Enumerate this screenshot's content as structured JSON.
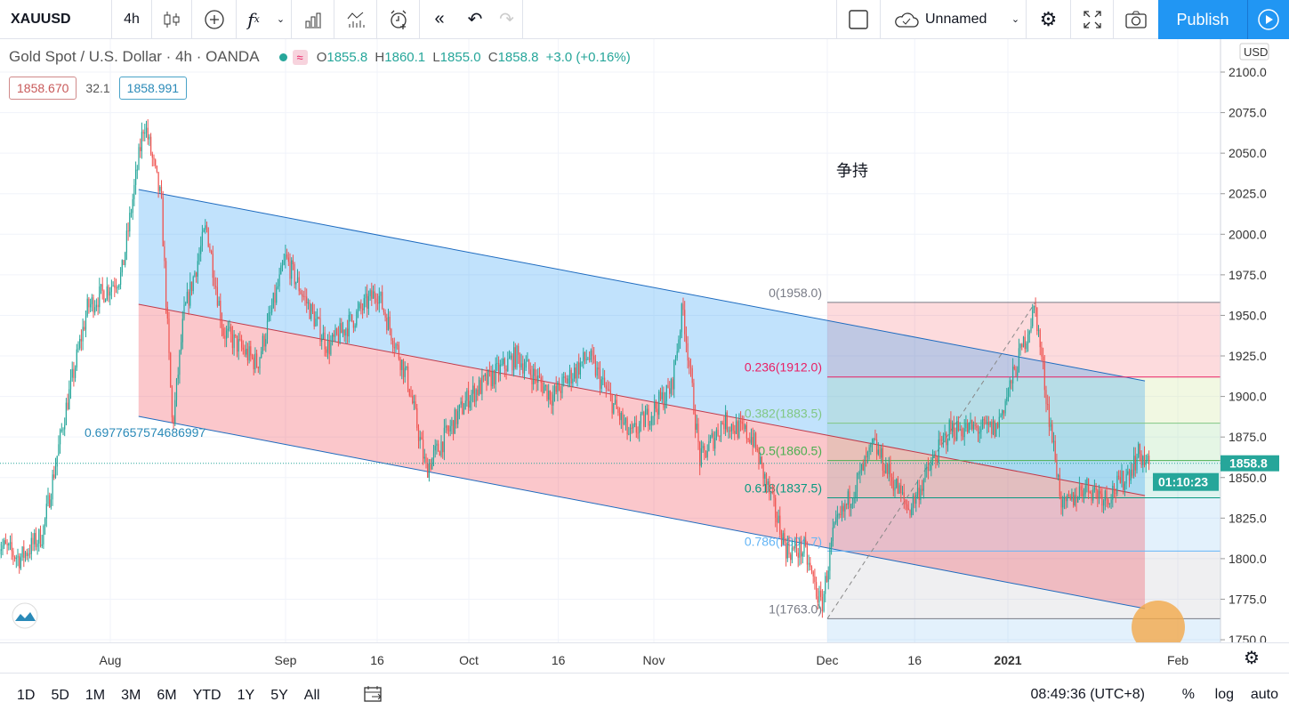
{
  "toolbar": {
    "symbol": "XAUUSD",
    "interval": "4h",
    "layout_name": "Unnamed",
    "publish_label": "Publish",
    "icons": [
      "candles-icon",
      "add-compare-icon",
      "indicators-icon",
      "chevron-down-icon",
      "templates-icon",
      "financials-icon",
      "alert-icon",
      "replay-icon",
      "undo-icon",
      "redo-icon",
      "rectangle-icon",
      "cloud-icon",
      "gear-icon",
      "fullscreen-icon",
      "camera-icon",
      "play-icon"
    ]
  },
  "legend": {
    "title": "Gold Spot / U.S. Dollar · 4h · OANDA",
    "o_label": "O",
    "o": "1855.8",
    "h_label": "H",
    "h": "1860.1",
    "l_label": "L",
    "l": "1855.0",
    "c_label": "C",
    "c": "1858.8",
    "change": "+3.0 (+0.16%)",
    "wave_icon": "≈",
    "indicator_values": [
      "1858.670",
      "32.1",
      "1858.991"
    ]
  },
  "annotations": {
    "note": "争持",
    "ratio_label": "0.6977657574686997"
  },
  "colors": {
    "up": "#26a69a",
    "down": "#ef5350",
    "accent": "#2196f3",
    "channel_upper": "#2196f3",
    "channel_lower": "#ef5350"
  },
  "price_axis": {
    "currency": "USD",
    "ticks": [
      "2100.0",
      "2075.0",
      "2050.0",
      "2025.0",
      "2000.0",
      "1975.0",
      "1950.0",
      "1925.0",
      "1900.0",
      "1875.0",
      "1850.0",
      "1825.0",
      "1800.0",
      "1775.0",
      "1750.0"
    ],
    "last_price": "1858.8",
    "countdown": "01:10:23"
  },
  "time_axis": {
    "labels": [
      {
        "t": "Aug",
        "d": "2020-08-01"
      },
      {
        "t": "Sep",
        "d": "2020-09-01"
      },
      {
        "t": "16",
        "d": "2020-09-16"
      },
      {
        "t": "Oct",
        "d": "2020-10-01"
      },
      {
        "t": "16",
        "d": "2020-10-16"
      },
      {
        "t": "Nov",
        "d": "2020-11-01"
      },
      {
        "t": "Dec",
        "d": "2020-12-01"
      },
      {
        "t": "16",
        "d": "2020-12-16"
      },
      {
        "t": "2021",
        "d": "2021-01-01"
      },
      {
        "t": "Feb",
        "d": "2021-02-01"
      }
    ]
  },
  "bottom": {
    "ranges": [
      "1D",
      "5D",
      "1M",
      "3M",
      "6M",
      "YTD",
      "1Y",
      "5Y",
      "All"
    ],
    "time": "08:49:36 (UTC+8)",
    "percent": "%",
    "log": "log",
    "auto": "auto"
  },
  "chart_data": {
    "type": "candlestick",
    "ylim": [
      1745,
      2110
    ],
    "price_path": [
      [
        "2020-07-12",
        1810
      ],
      [
        "2020-07-16",
        1800
      ],
      [
        "2020-07-20",
        1815
      ],
      [
        "2020-07-24",
        1890
      ],
      [
        "2020-07-28",
        1955
      ],
      [
        "2020-08-03",
        1975
      ],
      [
        "2020-08-07",
        2070
      ],
      [
        "2020-08-10",
        2020
      ],
      [
        "2020-08-12",
        1880
      ],
      [
        "2020-08-14",
        1950
      ],
      [
        "2020-08-18",
        2005
      ],
      [
        "2020-08-21",
        1940
      ],
      [
        "2020-08-27",
        1920
      ],
      [
        "2020-09-01",
        1985
      ],
      [
        "2020-09-08",
        1930
      ],
      [
        "2020-09-16",
        1965
      ],
      [
        "2020-09-21",
        1910
      ],
      [
        "2020-09-24",
        1855
      ],
      [
        "2020-10-01",
        1900
      ],
      [
        "2020-10-09",
        1925
      ],
      [
        "2020-10-15",
        1900
      ],
      [
        "2020-10-21",
        1925
      ],
      [
        "2020-10-28",
        1875
      ],
      [
        "2020-11-04",
        1905
      ],
      [
        "2020-11-06",
        1955
      ],
      [
        "2020-11-09",
        1860
      ],
      [
        "2020-11-13",
        1885
      ],
      [
        "2020-11-18",
        1875
      ],
      [
        "2020-11-24",
        1805
      ],
      [
        "2020-11-27",
        1805
      ],
      [
        "2020-11-30",
        1770
      ],
      [
        "2020-12-02",
        1815
      ],
      [
        "2020-12-09",
        1870
      ],
      [
        "2020-12-15",
        1830
      ],
      [
        "2020-12-22",
        1880
      ],
      [
        "2020-12-30",
        1880
      ],
      [
        "2021-01-06",
        1955
      ],
      [
        "2021-01-08",
        1900
      ],
      [
        "2021-01-11",
        1830
      ],
      [
        "2021-01-15",
        1845
      ],
      [
        "2021-01-19",
        1838
      ],
      [
        "2021-01-22",
        1848
      ],
      [
        "2021-01-25",
        1865
      ],
      [
        "2021-01-27",
        1855
      ]
    ],
    "channel": {
      "start": "2020-08-06",
      "end": "2021-01-26",
      "upper": [
        2027.6,
        1909.6
      ],
      "middle": [
        1956.8,
        1838.9
      ],
      "lower": [
        1887.7,
        1769.2
      ]
    },
    "fib": {
      "start": "2020-12-01",
      "levels": [
        {
          "r": "0",
          "p": 1958.0,
          "c": "#787b86"
        },
        {
          "r": "0.236",
          "p": 1912.0,
          "c": "#e91e63"
        },
        {
          "r": "0.382",
          "p": 1883.5,
          "c": "#81c784"
        },
        {
          "r": "0.5",
          "p": 1860.5,
          "c": "#4caf50"
        },
        {
          "r": "0.618",
          "p": 1837.5,
          "c": "#089981"
        },
        {
          "r": "0.786",
          "p": 1804.7,
          "c": "#64b5f6"
        },
        {
          "r": "1",
          "p": 1763.0,
          "c": "#787b86"
        }
      ]
    }
  }
}
